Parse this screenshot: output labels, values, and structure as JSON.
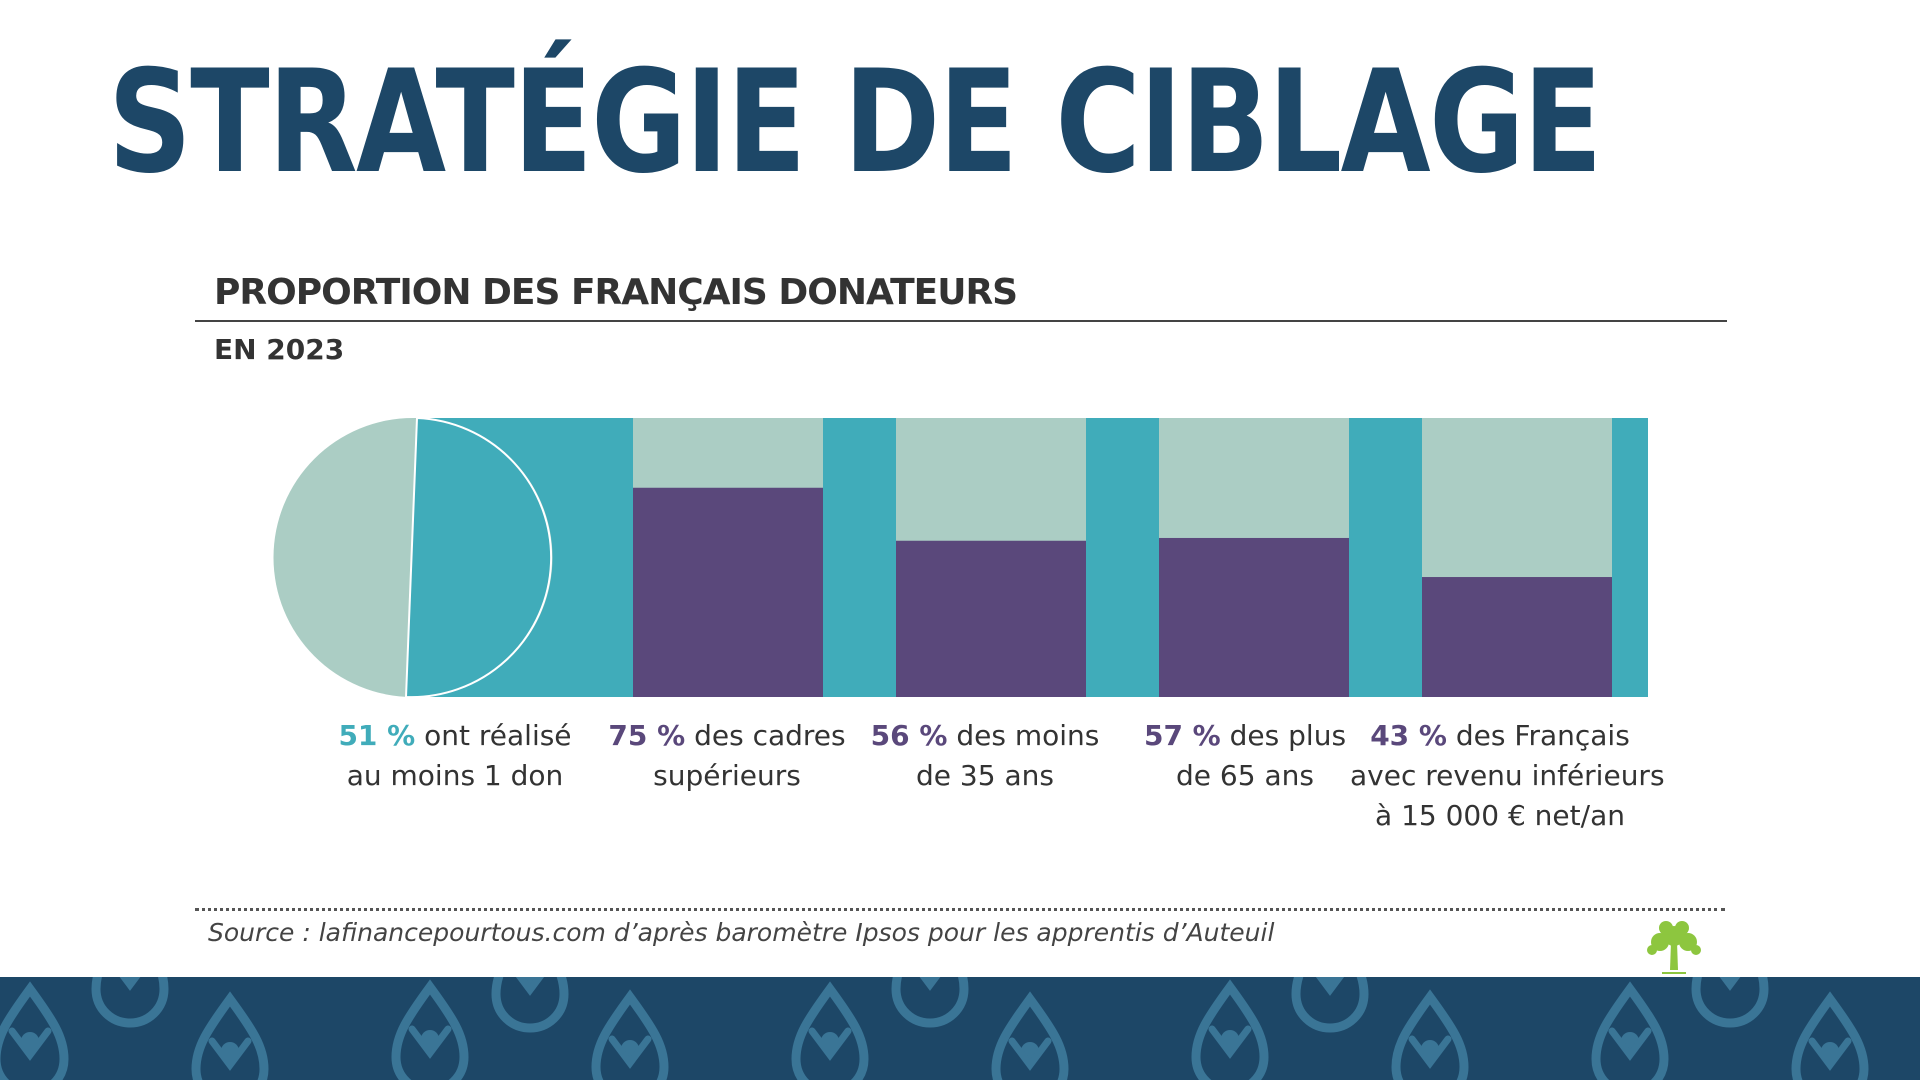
{
  "slide": {
    "title": "STRATÉGIE DE CIBLAGE"
  },
  "colors": {
    "title": "#1d4767",
    "teal": "#40acba",
    "light_teal": "#abcdc4",
    "purple": "#5a487b",
    "footer": "#1d4767",
    "logo_green": "#8dc63f"
  },
  "chart_data": {
    "type": "bar",
    "title": "PROPORTION DES FRANÇAIS DONATEURS",
    "subtitle": "EN 2023",
    "unit": "%",
    "ylim": [
      0,
      100
    ],
    "overall": {
      "value": 51,
      "label_pct": "51 %",
      "label_lines": [
        "ont réalisé",
        "au moins 1 don"
      ]
    },
    "categories": [
      {
        "value": 75,
        "label_pct": "75 %",
        "label_lines": [
          "des cadres",
          "supérieurs"
        ]
      },
      {
        "value": 56,
        "label_pct": "56 %",
        "label_lines": [
          "des moins",
          "de 35 ans"
        ]
      },
      {
        "value": 57,
        "label_pct": "57 %",
        "label_lines": [
          "des plus",
          "de 65 ans"
        ]
      },
      {
        "value": 43,
        "label_pct": "43 %",
        "label_lines": [
          "des Français",
          "avec revenu inférieurs",
          "à 15 000 € net/an"
        ]
      }
    ]
  },
  "source": {
    "text": "Source : lafinancepourtous.com d’après baromètre Ipsos pour les apprentis d’Auteuil"
  },
  "icons": {
    "logo": "tree-logo-icon",
    "footer_pattern": "donor-figure-pattern"
  }
}
